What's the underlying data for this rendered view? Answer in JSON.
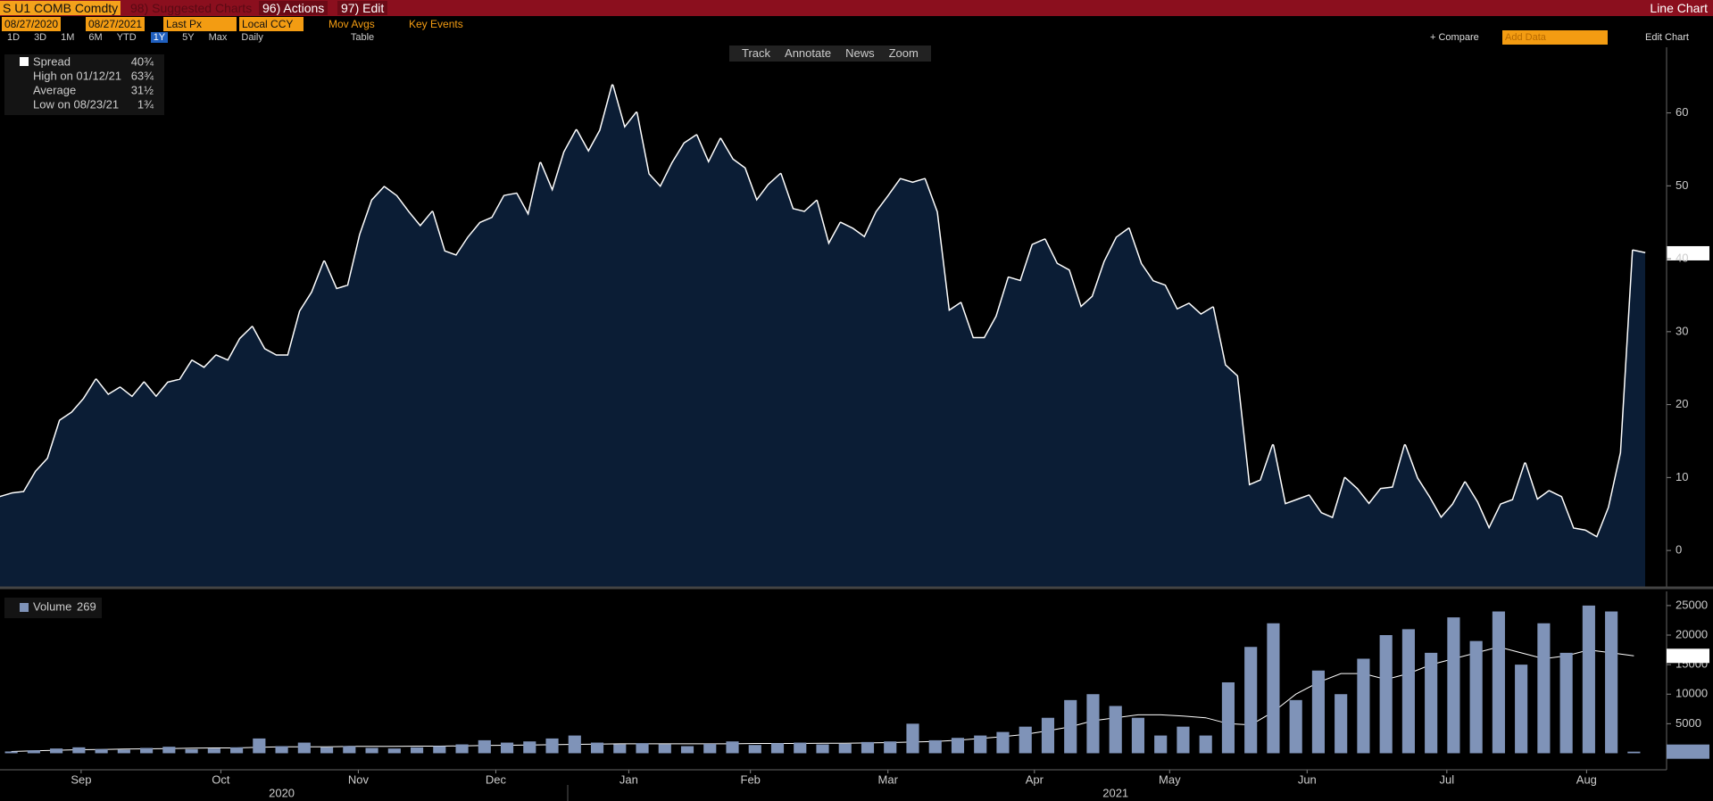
{
  "toolbar": {
    "security": "S U1 COMB Comdty",
    "suggested": "98) Suggested Charts",
    "actions": "96) Actions",
    "edit": "97) Edit",
    "chart_type": "Line Chart",
    "start_date": "08/27/2020",
    "end_date": "08/27/2021",
    "field": "Last Px",
    "currency": "Local CCY",
    "mov_avgs": "Mov Avgs",
    "key_events": "Key Events",
    "periods": [
      "1D",
      "3D",
      "1M",
      "6M",
      "YTD",
      "1Y",
      "5Y",
      "Max"
    ],
    "frequency": "Daily",
    "table": "Table",
    "compare": "+ Compare",
    "add_data": "Add Data",
    "edit_chart": "Edit Chart",
    "tools": [
      "Track",
      "Annotate",
      "News",
      "Zoom"
    ]
  },
  "legend": {
    "rows": [
      {
        "label": "Spread",
        "value": "40¾"
      },
      {
        "label": "High on 01/12/21",
        "value": "63¾"
      },
      {
        "label": "Average",
        "value": "31½"
      },
      {
        "label": "Low on 08/23/21",
        "value": "1¾"
      }
    ]
  },
  "chart_data": [
    {
      "type": "area",
      "color": "#ffffff",
      "fill": "#0b1d35",
      "ylim": [
        -5,
        69
      ],
      "yticks": [
        0,
        10,
        20,
        30,
        40,
        50,
        60
      ],
      "values": [
        7.3,
        7.8,
        8,
        10.8,
        12.6,
        17.8,
        18.9,
        20.8,
        23.4,
        21.3,
        22.3,
        21,
        23,
        21,
        23,
        23.4,
        26,
        25,
        26.7,
        26,
        29,
        30.6,
        27.6,
        26.7,
        26.7,
        32.8,
        35.4,
        39.6,
        35.8,
        36.3,
        43.3,
        48,
        49.8,
        48.6,
        46.4,
        44.4,
        46.4,
        41,
        40.4,
        42.9,
        44.9,
        45.6,
        48.6,
        48.9,
        45.9,
        53.1,
        49.2,
        54.6,
        57.6,
        54.6,
        57.6,
        63.75,
        57.9,
        60,
        51.6,
        49.8,
        53.1,
        55.8,
        56.9,
        53.1,
        56.4,
        53.6,
        52.4,
        47.9,
        50.1,
        51.6,
        46.8,
        46.4,
        47.9,
        41.9,
        44.9,
        44.1,
        42.9,
        46.4,
        48.6,
        50.9,
        50.4,
        50.9,
        46.4,
        32.8,
        33.9,
        29.1,
        29.1,
        32.1,
        37.4,
        36.9,
        41.9,
        42.6,
        39.3,
        38.4,
        33.3,
        34.8,
        39.6,
        42.9,
        44.1,
        39.3,
        36.9,
        36.3,
        33,
        33.8,
        32.3,
        33.3,
        25.4,
        23.9,
        8.9,
        9.6,
        14.4,
        6.3,
        6.9,
        7.5,
        5.1,
        4.4,
        9.9,
        8.4,
        6.3,
        8.4,
        8.6,
        14.4,
        9.9,
        7.3,
        4.4,
        6.3,
        9.3,
        6.6,
        2.9,
        6.3,
        6.9,
        11.9,
        6.9,
        8.1,
        7.3,
        3,
        2.7,
        1.75,
        5.9,
        13.4,
        41.1,
        40.75
      ]
    },
    {
      "type": "bar",
      "ylim": [
        -2800,
        27400
      ],
      "yticks": [
        5000,
        10000,
        15000,
        20000,
        25000
      ],
      "xticks": [
        {
          "value": 3.1,
          "label": "Sep"
        },
        {
          "value": 9.3,
          "label": "Oct"
        },
        {
          "value": 15.4,
          "label": "Nov"
        },
        {
          "value": 21.5,
          "label": "Dec"
        },
        {
          "value": 27.4,
          "label": "Jan"
        },
        {
          "value": 32.8,
          "label": "Feb"
        },
        {
          "value": 38.9,
          "label": "Mar"
        },
        {
          "value": 45.4,
          "label": "Apr"
        },
        {
          "value": 51.4,
          "label": "May"
        },
        {
          "value": 57.5,
          "label": "Jun"
        },
        {
          "value": 63.7,
          "label": "Jul"
        },
        {
          "value": 69.9,
          "label": "Aug"
        }
      ],
      "year_ticks": [
        {
          "value": 12.0,
          "label": "2020"
        },
        {
          "value": 49.0,
          "label": "2021"
        }
      ],
      "series": [
        {
          "name": "Volume",
          "color": "#7f93b8",
          "values": [
            300,
            500,
            800,
            1000,
            700,
            600,
            900,
            1100,
            700,
            800,
            1000,
            2500,
            1200,
            1800,
            1000,
            1200,
            900,
            800,
            1000,
            1200,
            1500,
            2200,
            1800,
            2000,
            2500,
            3000,
            1800,
            1500,
            1700,
            1500,
            1200,
            1600,
            2000,
            1400,
            1700,
            1800,
            1500,
            1600,
            1900,
            2000,
            5000,
            2200,
            2600,
            3000,
            3600,
            4500,
            6000,
            9000,
            10000,
            8000,
            6000,
            3000,
            4500,
            3000,
            12000,
            18000,
            22000,
            9000,
            14000,
            10000,
            16000,
            20000,
            21000,
            17000,
            23000,
            19000,
            24000,
            15000,
            22000,
            17000,
            25000,
            24000,
            269
          ]
        },
        {
          "type": "line",
          "color": "#ffffff",
          "values": [
            300,
            400,
            500,
            600,
            650,
            700,
            750,
            800,
            850,
            900,
            900,
            1000,
            1100,
            1100,
            1100,
            1150,
            1150,
            1150,
            1200,
            1200,
            1250,
            1300,
            1350,
            1400,
            1450,
            1500,
            1550,
            1600,
            1600,
            1600,
            1600,
            1600,
            1600,
            1650,
            1650,
            1650,
            1700,
            1700,
            1750,
            1800,
            1900,
            2000,
            2200,
            2500,
            2800,
            3200,
            3800,
            4500,
            5500,
            6000,
            6500,
            6500,
            6300,
            6000,
            5000,
            4800,
            7000,
            10000,
            12000,
            13500,
            13500,
            12500,
            13500,
            15000,
            16000,
            17000,
            18000,
            17000,
            16000,
            16500,
            17500,
            17000,
            16486
          ]
        }
      ]
    }
  ]
}
